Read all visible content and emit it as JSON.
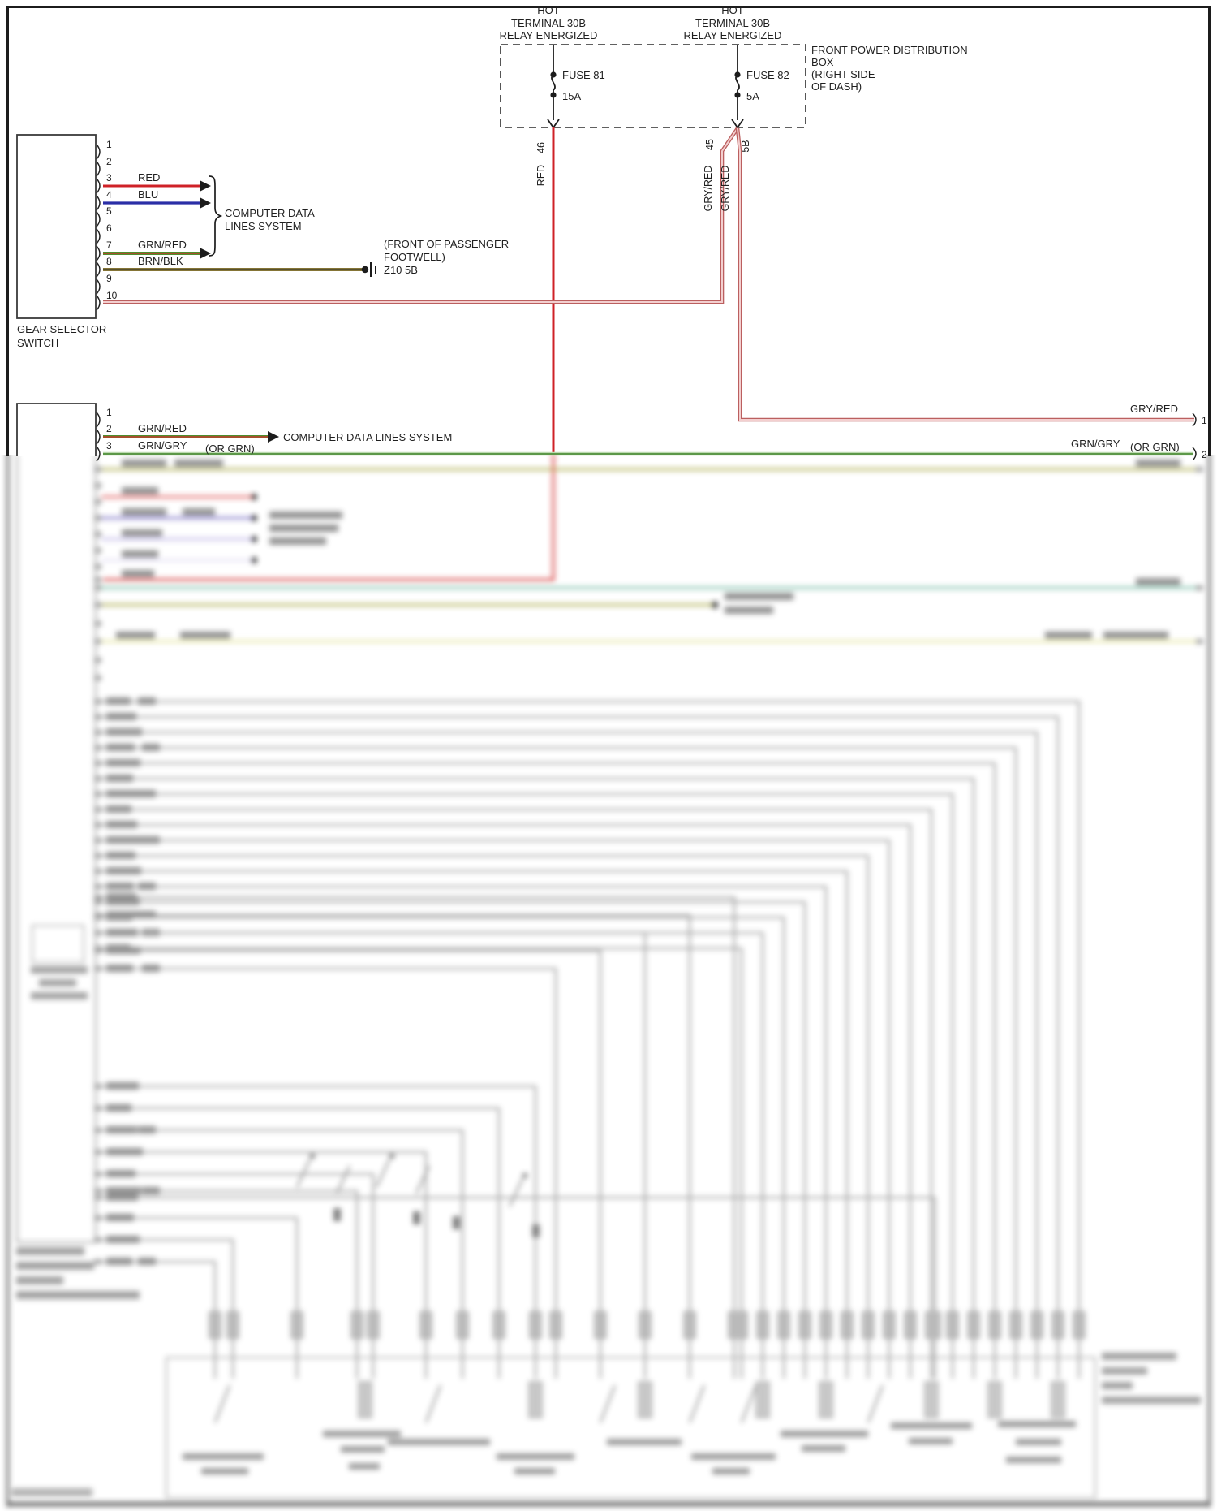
{
  "colors": {
    "ink": "#1f1f1f",
    "red_wire": "#cf2127",
    "blue_wire": "#2a2ea6",
    "green_red_wire": "#4e8f2e",
    "brown_black_wire": "#857536",
    "gray_red_wire": "#bb5f5f",
    "green_gray_wire": "#4e8f3a"
  },
  "power_distribution": {
    "feed_left": {
      "lines": [
        "HOT",
        "TERMINAL 30B",
        "RELAY ENERGIZED"
      ]
    },
    "feed_right": {
      "lines": [
        "HOT",
        "TERMINAL 30B",
        "RELAY ENERGIZED"
      ]
    },
    "fuse_left": {
      "name": "FUSE 81",
      "amps": "15A"
    },
    "fuse_right": {
      "name": "FUSE 82",
      "amps": "5A"
    },
    "box_label": {
      "lines": [
        "FRONT POWER DISTRIBUTION",
        "BOX",
        "(RIGHT SIDE",
        "OF DASH)"
      ]
    }
  },
  "circuits": {
    "red": {
      "id": "46",
      "color_label": "RED"
    },
    "gry_red_45": {
      "id": "45",
      "color_label": "GRY/RED"
    },
    "gry_red_5b": {
      "id": "5B",
      "color_label": "GRY/RED"
    }
  },
  "gear_selector": {
    "name_lines": [
      "GEAR SELECTOR",
      "SWITCH"
    ],
    "pins": [
      "1",
      "2",
      "3",
      "4",
      "5",
      "6",
      "7",
      "8",
      "9",
      "10"
    ],
    "wire_labels": {
      "pin3": "RED",
      "pin4": "BLU",
      "pin7": "GRN/RED",
      "pin8": "BRN/BLK"
    },
    "data_lines_label": [
      "COMPUTER DATA",
      "LINES SYSTEM"
    ],
    "ground": {
      "lines": [
        "(FRONT OF PASSENGER",
        "FOOTWELL)",
        "Z10 5B"
      ]
    }
  },
  "module_connector": {
    "pins": [
      "1",
      "2",
      "3"
    ],
    "wire2_label": "GRN/RED",
    "wire2_destination": "COMPUTER DATA LINES SYSTEM",
    "wire3_label": "GRN/GRY",
    "wire3_alt": "(OR GRN)"
  },
  "right_edge": {
    "row1_label": "GRY/RED",
    "row1_pin": "1",
    "row2_label": "GRN/GRY",
    "row2_alt": "(OR GRN)",
    "row2_pin": "2"
  }
}
